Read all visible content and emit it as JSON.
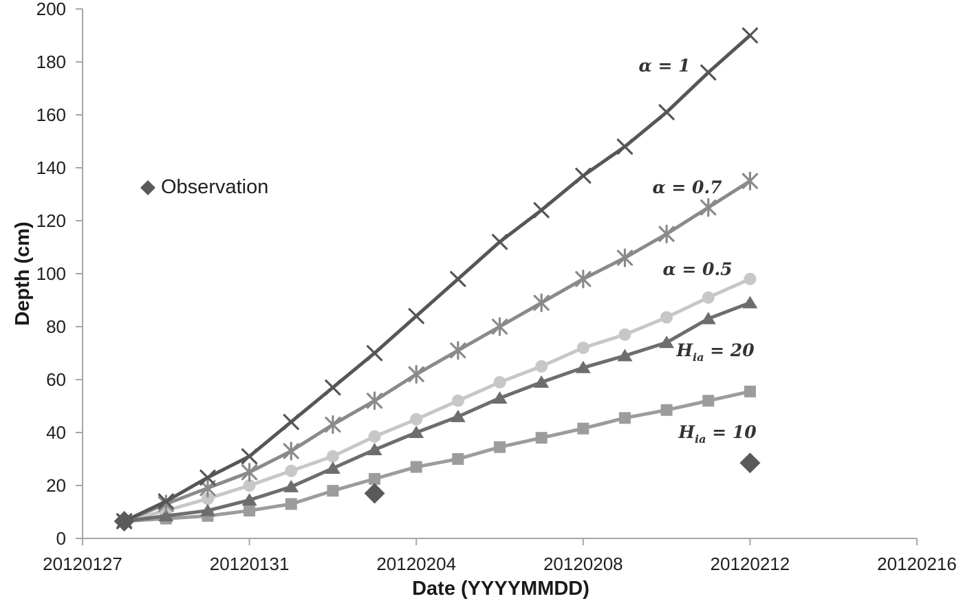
{
  "legend": {
    "label": "Observation",
    "marker": "diamond"
  },
  "chart_data": {
    "type": "line",
    "x": [
      "20120128",
      "20120129",
      "20120130",
      "20120131",
      "20120201",
      "20120202",
      "20120203",
      "20120204",
      "20120205",
      "20120206",
      "20120207",
      "20120208",
      "20120209",
      "20120210",
      "20120211",
      "20120212"
    ],
    "x_axis": {
      "label": "Date (YYYYMMDD)",
      "ticks": [
        "20120127",
        "20120131",
        "20120204",
        "20120208",
        "20120212",
        "20120216"
      ],
      "start": "20120127",
      "end": "20120216"
    },
    "y_axis": {
      "label": "Depth (cm)",
      "min": 0,
      "max": 200,
      "tick_step": 20
    },
    "series": [
      {
        "id": "alpha1",
        "name": "α = 1",
        "marker": "x-cross",
        "color": "#565656",
        "annotation": [
          {
            "t": "α = 1"
          }
        ],
        "values": [
          6.5,
          14,
          23,
          31,
          44,
          57,
          70,
          84,
          98,
          112,
          124,
          137,
          148,
          161,
          176,
          190
        ]
      },
      {
        "id": "alpha07",
        "name": "α = 0.7",
        "marker": "asterisk",
        "color": "#8a8a8a",
        "annotation": [
          {
            "t": "α = 0.7"
          }
        ],
        "values": [
          6.5,
          13,
          19,
          25,
          33,
          43,
          52,
          62,
          71,
          80,
          89,
          98,
          106,
          115,
          125,
          135
        ]
      },
      {
        "id": "alpha05",
        "name": "α = 0.5",
        "marker": "circle",
        "color": "#c7c7c7",
        "annotation": [
          {
            "t": "α = 0.5"
          }
        ],
        "values": [
          6.5,
          10.5,
          15,
          20,
          25.5,
          31,
          38.5,
          45,
          52,
          59,
          65,
          72,
          77,
          83.5,
          91,
          98
        ]
      },
      {
        "id": "h20",
        "name": "Hia = 20",
        "marker": "triangle",
        "color": "#6d6d6d",
        "annotation": [
          {
            "t": "H"
          },
          {
            "t": "ia",
            "sub": true
          },
          {
            "t": " = 20"
          }
        ],
        "values": [
          6.5,
          8.5,
          10.5,
          14.5,
          19.5,
          26.5,
          33.5,
          40,
          46,
          53,
          59,
          64.5,
          69,
          74,
          83,
          89
        ]
      },
      {
        "id": "h10",
        "name": "Hia = 10",
        "marker": "square",
        "color": "#9c9c9c",
        "annotation": [
          {
            "t": "H"
          },
          {
            "t": "ia",
            "sub": true
          },
          {
            "t": " = 10"
          }
        ],
        "values": [
          6.5,
          7.5,
          8.5,
          10.5,
          13,
          18,
          22.5,
          27,
          30,
          34.5,
          38,
          41.5,
          45.5,
          48.5,
          52,
          55.5
        ]
      }
    ],
    "observations": {
      "name": "Observation",
      "marker": "diamond",
      "color": "#5a5a5a",
      "points": [
        {
          "date": "20120128",
          "value": 6.5
        },
        {
          "date": "20120203",
          "value": 17
        },
        {
          "date": "20120212",
          "value": 28.5
        }
      ]
    }
  }
}
